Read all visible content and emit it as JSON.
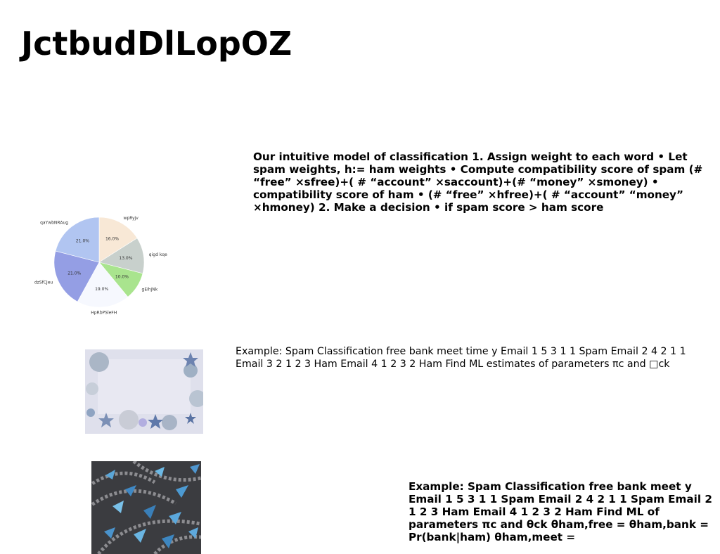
{
  "title": "JctbudDlLopOZ",
  "paragraphs": {
    "model": "Our intuitive model of classification 1. Assign weight to each word • Let spam weights, h:= ham weights • Compute compatibility score of spam (# “free” ×sfree)+( # “account” ×saccount)+(# “money” ×smoney) • compatibility score of ham • (# “free” ×hfree)+( # “account” “money” ×hmoney) 2. Make a decision • if spam score > ham score",
    "example1": "Example: Spam Classification free bank meet time y Email 1 5 3 1 1 Spam Email 2 4 2 1 1 Email 3 2 1 2 3 Ham Email 4 1 2 3 2 Ham Find ML estimates of parameters πc and □ck",
    "example2": "Example: Spam Classification free bank meet y Email 1 5 3 1 1 Spam Email 2 4 2 1 1 Spam Email 2 1 2 3 Ham Email 4 1 2 3 2 Ham Find ML of parameters πc and θck θham,free = θham,bank = Pr(bank|ham) θham,meet ="
  },
  "chart_data": {
    "type": "pie",
    "title": "",
    "slices": [
      {
        "label": "wpRyjv",
        "value": 16.0,
        "pct": "16.0%",
        "color": "#f8e8d6"
      },
      {
        "label": "qigd kqe",
        "value": 13.0,
        "pct": "13.0%",
        "color": "#c8d0cc"
      },
      {
        "label": "gEihjNk",
        "value": 10.0,
        "pct": "10.0%",
        "color": "#a9e48e"
      },
      {
        "label": "HpRbPSleFH",
        "value": 19.0,
        "pct": "19.0%",
        "color": "#f6f8fe"
      },
      {
        "label": "dzSfCJeu",
        "value": 21.0,
        "pct": "21.0%",
        "color": "#949ee4"
      },
      {
        "label": "qaYwbNRAug",
        "value": 21.0,
        "pct": "21.0%",
        "color": "#b1c5f1"
      }
    ],
    "start_angle": "90° (top), clockwise"
  },
  "images": {
    "image1": {
      "subject": "winter decoration frame with stars and ornaments",
      "colors": {
        "bg": "#dfe0ec",
        "accent": "#6d83b0"
      }
    },
    "image2": {
      "subject": "blue paper origami birds on cobblestone pavement",
      "colors": {
        "bg": "#3b3c40",
        "accent": "#5aa6d8"
      }
    }
  }
}
